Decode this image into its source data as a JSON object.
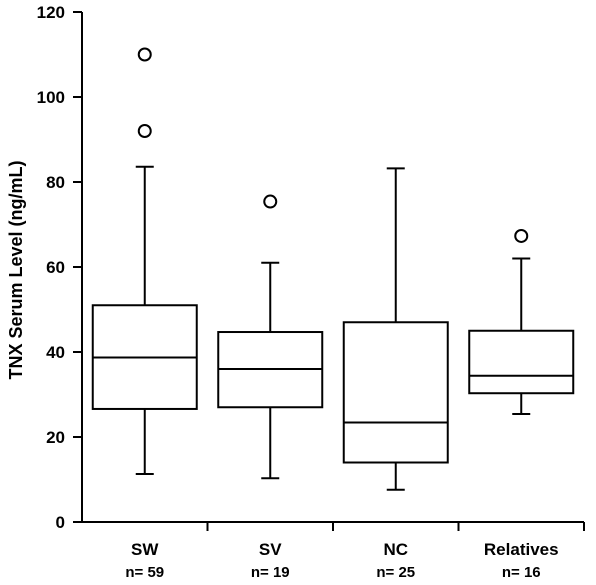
{
  "chart_data": {
    "type": "boxplot",
    "ylabel": "TNX Serum Level (ng/mL)",
    "ylim": [
      0,
      120
    ],
    "yticks": [
      0,
      20,
      40,
      60,
      80,
      100,
      120
    ],
    "grid": false,
    "groups": [
      {
        "label": "SW",
        "n_label": "n= 59",
        "whisker_low": 11.3,
        "q1": 26.6,
        "median": 38.7,
        "q3": 51.0,
        "whisker_high": 83.6,
        "outliers": [
          92.0,
          110.0
        ]
      },
      {
        "label": "SV",
        "n_label": "n= 19",
        "whisker_low": 10.3,
        "q1": 27.0,
        "median": 36.0,
        "q3": 44.7,
        "whisker_high": 61.0,
        "outliers": [
          75.4
        ]
      },
      {
        "label": "NC",
        "n_label": "n= 25",
        "whisker_low": 7.6,
        "q1": 14.0,
        "median": 23.4,
        "q3": 47.0,
        "whisker_high": 83.2,
        "outliers": []
      },
      {
        "label": "Relatives",
        "n_label": "n= 16",
        "whisker_low": 25.4,
        "q1": 30.3,
        "median": 34.4,
        "q3": 45.0,
        "whisker_high": 62.0,
        "outliers": [
          67.3
        ]
      }
    ]
  }
}
